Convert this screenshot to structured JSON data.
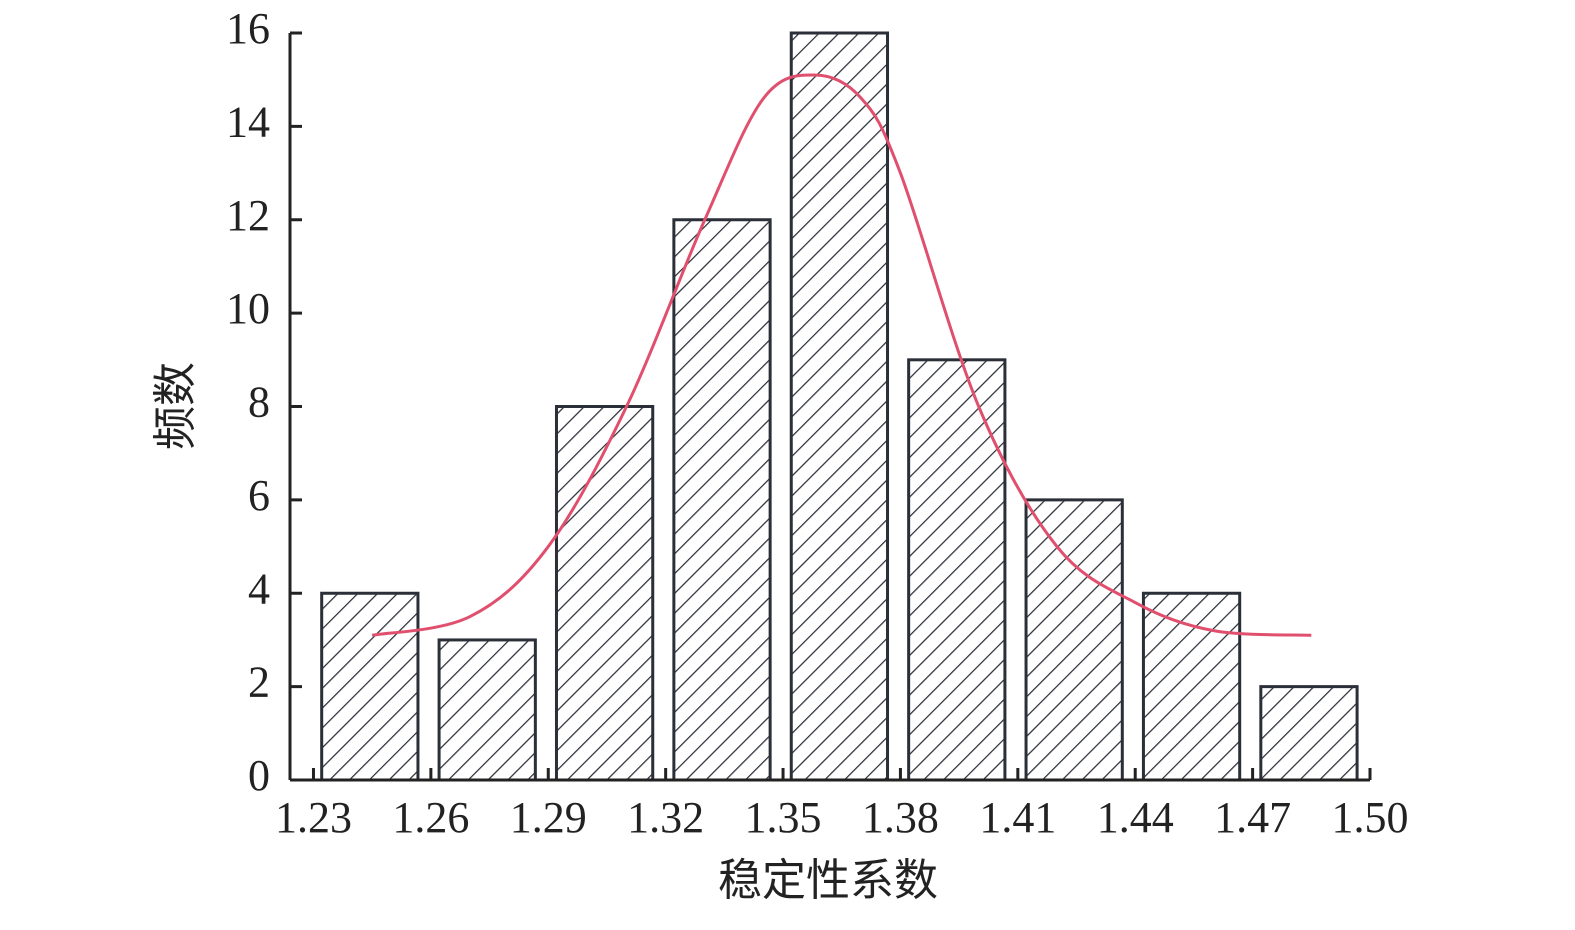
{
  "chart_data": {
    "type": "histogram",
    "x_label": "稳定性系数",
    "y_label": "频数",
    "bins": [
      1.23,
      1.26,
      1.29,
      1.32,
      1.35,
      1.38,
      1.41,
      1.44,
      1.47,
      1.5
    ],
    "values": [
      4,
      3,
      8,
      12,
      16,
      9,
      6,
      4,
      2
    ],
    "color": "#2b2f38",
    "xlim": [
      1.224,
      1.5
    ],
    "ylim": [
      0,
      16
    ],
    "xticks": [
      1.23,
      1.26,
      1.29,
      1.32,
      1.35,
      1.38,
      1.41,
      1.44,
      1.47,
      {
        "value": 1.5,
        "label": "1.50"
      }
    ],
    "yticks": [
      0,
      2,
      4,
      6,
      8,
      10,
      12,
      14,
      16
    ],
    "fit_curve": {
      "color": "#e0506e",
      "x": [
        1.245,
        1.27,
        1.29,
        1.31,
        1.33,
        1.345,
        1.358,
        1.37,
        1.38,
        1.4,
        1.42,
        1.44,
        1.46,
        1.485
      ],
      "y": [
        3.1,
        3.5,
        5,
        8,
        12,
        14.6,
        15.1,
        14.6,
        13,
        8,
        5,
        3.8,
        3.2,
        3.1
      ]
    }
  }
}
